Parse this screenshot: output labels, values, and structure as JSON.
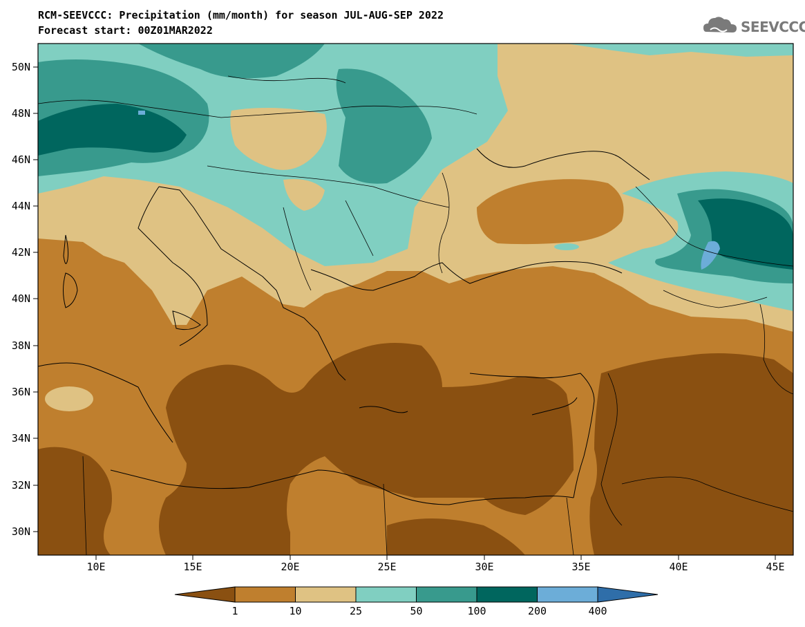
{
  "title": {
    "line1": "RCM-SEEVCCC: Precipitation (mm/month) for season JUL-AUG-SEP 2022",
    "line2": "Forecast start: 00Z01MAR2022"
  },
  "logo": {
    "text": "SEEVCCC",
    "icon": "cloud-icon"
  },
  "axes": {
    "lat_labels": [
      "50N",
      "48N",
      "46N",
      "44N",
      "42N",
      "40N",
      "38N",
      "36N",
      "34N",
      "32N",
      "30N"
    ],
    "lon_labels": [
      "10E",
      "15E",
      "20E",
      "25E",
      "30E",
      "35E",
      "40E",
      "45E"
    ]
  },
  "colorbar": {
    "levels": [
      "1",
      "10",
      "25",
      "50",
      "100",
      "200",
      "400"
    ],
    "colors": [
      "#8a5011",
      "#bf7f2e",
      "#dfc283",
      "#80cfc1",
      "#389a8d",
      "#00665e",
      "#6cadd8",
      "#2f6ea9"
    ]
  }
}
